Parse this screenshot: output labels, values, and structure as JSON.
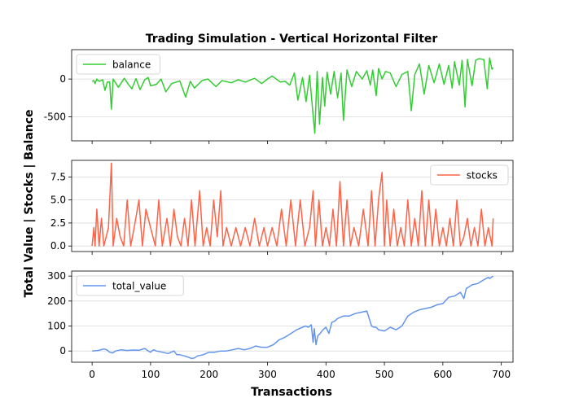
{
  "chart_data": {
    "type": "line",
    "title": "Trading Simulation - Vertical Horizontal Filter",
    "xlabel": "Transactions",
    "ylabel": "Total Value | Stocks | Balance",
    "xlim": [
      -35,
      720
    ],
    "x_ticks": [
      0,
      100,
      200,
      300,
      400,
      500,
      600,
      700
    ],
    "grid": "horizontal",
    "panels": [
      {
        "series": {
          "name": "balance",
          "color": "#32cd32",
          "x": [
            0,
            3,
            5,
            8,
            12,
            18,
            22,
            26,
            30,
            33,
            36,
            45,
            55,
            62,
            68,
            75,
            82,
            90,
            96,
            100,
            110,
            118,
            126,
            136,
            150,
            160,
            168,
            175,
            188,
            198,
            212,
            222,
            238,
            250,
            262,
            278,
            290,
            300,
            308,
            322,
            330,
            338,
            346,
            352,
            360,
            366,
            372,
            378,
            381,
            385,
            389,
            394,
            398,
            402,
            408,
            414,
            420,
            426,
            430,
            436,
            444,
            452,
            462,
            470,
            476,
            480,
            486,
            490,
            496,
            502,
            510,
            520,
            530,
            540,
            546,
            552,
            560,
            568,
            576,
            585,
            594,
            602,
            610,
            616,
            620,
            628,
            633,
            638,
            642,
            650,
            656,
            662,
            670,
            676,
            680,
            684,
            686
          ],
          "values": [
            -30,
            -20,
            -60,
            0,
            -30,
            -10,
            -150,
            -40,
            -40,
            -400,
            0,
            -110,
            10,
            -70,
            -130,
            5,
            -140,
            -10,
            20,
            -90,
            -70,
            0,
            -170,
            -60,
            -25,
            -240,
            -30,
            -120,
            -20,
            0,
            -100,
            -20,
            -50,
            -10,
            -40,
            10,
            -60,
            0,
            40,
            -40,
            -30,
            -80,
            80,
            -280,
            20,
            -300,
            50,
            -480,
            -720,
            100,
            -600,
            20,
            -360,
            90,
            -200,
            100,
            -250,
            80,
            -550,
            120,
            -100,
            100,
            0,
            110,
            -80,
            120,
            -220,
            140,
            0,
            100,
            80,
            -100,
            60,
            100,
            -420,
            60,
            200,
            -200,
            180,
            -50,
            200,
            -70,
            180,
            -120,
            230,
            -80,
            250,
            -370,
            260,
            -90,
            250,
            270,
            260,
            -130,
            280,
            130,
            150
          ]
        },
        "ylim": [
          -820,
          390
        ],
        "y_ticks": [
          -500,
          0
        ],
        "legend": "upper left"
      },
      {
        "series": {
          "name": "stocks",
          "color": "#ff6347",
          "x": [
            0,
            3,
            5,
            8,
            12,
            16,
            20,
            24,
            28,
            33,
            36,
            42,
            48,
            54,
            60,
            66,
            72,
            80,
            86,
            92,
            100,
            108,
            114,
            120,
            128,
            134,
            140,
            146,
            152,
            158,
            164,
            170,
            176,
            184,
            190,
            196,
            202,
            208,
            214,
            220,
            224,
            230,
            238,
            246,
            254,
            262,
            270,
            278,
            286,
            294,
            300,
            308,
            316,
            324,
            332,
            340,
            348,
            356,
            364,
            372,
            378,
            382,
            388,
            394,
            400,
            406,
            412,
            418,
            424,
            430,
            436,
            442,
            448,
            456,
            464,
            472,
            478,
            484,
            490,
            496,
            500,
            504,
            510,
            516,
            522,
            528,
            534,
            540,
            546,
            552,
            558,
            564,
            570,
            576,
            582,
            588,
            594,
            600,
            606,
            612,
            618,
            624,
            630,
            636,
            642,
            648,
            654,
            660,
            666,
            672,
            678,
            684,
            686
          ],
          "values": [
            0,
            2,
            0,
            4,
            0,
            3,
            0,
            1,
            2,
            9,
            0,
            3,
            1,
            0,
            5,
            0,
            2,
            5,
            0,
            4,
            2,
            0,
            5,
            0,
            3,
            0,
            4,
            1,
            0,
            3,
            0,
            5,
            0,
            6,
            0,
            2,
            0,
            5,
            1,
            6,
            0,
            2,
            0,
            2,
            0,
            2,
            0,
            3,
            0,
            2,
            0,
            2,
            0,
            4,
            0,
            5,
            0,
            5,
            0,
            2,
            6,
            0,
            5,
            0,
            2,
            0,
            4,
            0,
            7,
            0,
            5,
            0,
            2,
            0,
            4,
            0,
            6,
            0,
            5,
            8,
            0,
            5,
            0,
            4,
            0,
            2,
            0,
            5,
            0,
            3,
            0,
            6,
            0,
            5,
            0,
            4,
            0,
            2,
            0,
            3,
            0,
            5,
            0,
            1,
            3,
            0,
            2,
            0,
            4,
            0,
            2,
            0,
            3
          ]
        },
        "ylim": [
          -0.6,
          9.3
        ],
        "y_ticks": [
          0.0,
          2.5,
          5.0,
          7.5
        ],
        "y_tick_labels": [
          "0.0",
          "2.5",
          "5.0",
          "7.5"
        ],
        "legend": "upper right"
      },
      {
        "series": {
          "name": "total_value",
          "color": "#6495ed",
          "x": [
            0,
            10,
            20,
            25,
            30,
            35,
            40,
            50,
            60,
            70,
            80,
            90,
            95,
            100,
            105,
            110,
            120,
            130,
            140,
            145,
            150,
            158,
            165,
            170,
            175,
            180,
            190,
            200,
            210,
            220,
            230,
            240,
            250,
            260,
            270,
            280,
            290,
            300,
            310,
            320,
            330,
            340,
            350,
            360,
            365,
            370,
            375,
            378,
            380,
            383,
            386,
            390,
            395,
            400,
            405,
            410,
            415,
            420,
            430,
            440,
            450,
            460,
            470,
            478,
            482,
            486,
            490,
            500,
            510,
            520,
            530,
            540,
            550,
            560,
            570,
            580,
            590,
            600,
            610,
            620,
            630,
            636,
            640,
            650,
            660,
            670,
            678,
            680,
            686
          ],
          "values": [
            0,
            2,
            8,
            5,
            -5,
            -8,
            0,
            5,
            2,
            4,
            3,
            10,
            2,
            -5,
            5,
            0,
            -5,
            -10,
            0,
            -15,
            -15,
            -20,
            -25,
            -30,
            -28,
            -20,
            -15,
            -5,
            -5,
            0,
            0,
            5,
            10,
            5,
            10,
            20,
            15,
            15,
            25,
            45,
            55,
            70,
            85,
            95,
            100,
            95,
            105,
            35,
            90,
            25,
            60,
            70,
            85,
            95,
            70,
            115,
            120,
            130,
            140,
            140,
            150,
            155,
            160,
            100,
            95,
            95,
            85,
            80,
            95,
            85,
            100,
            140,
            155,
            165,
            170,
            175,
            185,
            190,
            215,
            220,
            235,
            210,
            250,
            265,
            270,
            285,
            295,
            290,
            300
          ]
        },
        "ylim": [
          -45,
          320
        ],
        "y_ticks": [
          0,
          100,
          200,
          300
        ],
        "legend": "upper left"
      }
    ]
  }
}
